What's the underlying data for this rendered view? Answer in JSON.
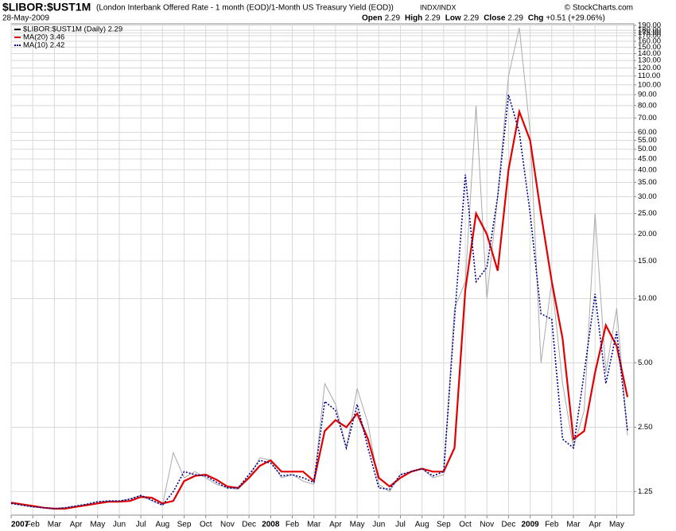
{
  "chart_data": {
    "type": "line",
    "title": "$LIBOR:$UST1M",
    "subtitle": "(London Interbank Offered Rate - 1 month (EOD)/1-Month US Treasury Yield (EOD))",
    "exchange": "INDX/INDX",
    "date": "28-May-2009",
    "credit": "© StockCharts.com",
    "quote": [
      {
        "label": "Open",
        "value": "2.29"
      },
      {
        "label": "High",
        "value": "2.29"
      },
      {
        "label": "Low",
        "value": "2.29"
      },
      {
        "label": "Close",
        "value": "2.29"
      },
      {
        "label": "Chg",
        "value": "+0.51 (+29.06%)"
      }
    ],
    "log_scale": true,
    "grid": true,
    "categories": [
      "2007",
      null,
      "Feb",
      null,
      "Mar",
      null,
      "Apr",
      null,
      "May",
      null,
      "Jun",
      null,
      "Jul",
      null,
      "Aug",
      null,
      "Sep",
      null,
      "Oct",
      null,
      "Nov",
      null,
      "Dec",
      null,
      "2008",
      null,
      "Feb",
      null,
      "Mar",
      null,
      "Apr",
      null,
      "May",
      null,
      "Jun",
      null,
      "Jul",
      null,
      "Aug",
      null,
      "Sep",
      null,
      "Oct",
      null,
      "Nov",
      null,
      "Dec",
      null,
      "2009",
      null,
      "Feb",
      null,
      "Mar",
      null,
      "Apr",
      null,
      "May",
      null
    ],
    "series": [
      {
        "name": "$LIBOR:$UST1M (Daily) 2.29",
        "color": "#aaaaaa",
        "style": "solid",
        "width": 1,
        "values": [
          1.1,
          1.08,
          1.06,
          1.05,
          1.04,
          1.05,
          1.07,
          1.09,
          1.12,
          1.13,
          1.13,
          1.16,
          1.2,
          1.13,
          1.08,
          1.9,
          1.45,
          1.55,
          1.45,
          1.35,
          1.3,
          1.28,
          1.45,
          1.8,
          1.75,
          1.45,
          1.5,
          1.4,
          1.35,
          4.0,
          3.2,
          2.0,
          3.8,
          2.6,
          1.35,
          1.25,
          1.5,
          1.55,
          1.6,
          1.45,
          1.5,
          9.0,
          12.0,
          80.0,
          10.0,
          30.0,
          110.0,
          185.0,
          60.0,
          5.0,
          12.0,
          4.0,
          2.0,
          3.0,
          25.0,
          4.5,
          9.0,
          2.29
        ]
      },
      {
        "name": "MA(20) 3.46",
        "color": "#e00000",
        "style": "solid",
        "width": 2.2,
        "values": [
          1.11,
          1.09,
          1.07,
          1.05,
          1.04,
          1.04,
          1.06,
          1.08,
          1.1,
          1.12,
          1.12,
          1.13,
          1.18,
          1.17,
          1.1,
          1.13,
          1.4,
          1.48,
          1.5,
          1.42,
          1.32,
          1.3,
          1.45,
          1.65,
          1.75,
          1.55,
          1.55,
          1.55,
          1.4,
          2.4,
          2.7,
          2.5,
          2.9,
          2.2,
          1.45,
          1.32,
          1.45,
          1.55,
          1.6,
          1.55,
          1.55,
          2.0,
          11.0,
          25.0,
          20.0,
          13.5,
          40.0,
          75.0,
          55.0,
          25.0,
          12.0,
          6.5,
          2.2,
          2.4,
          4.5,
          7.5,
          6.0,
          3.46
        ]
      },
      {
        "name": "MA(10) 2.42",
        "color": "#00008b",
        "style": "dotted",
        "width": 1.6,
        "values": [
          1.1,
          1.08,
          1.06,
          1.05,
          1.04,
          1.05,
          1.07,
          1.09,
          1.12,
          1.13,
          1.13,
          1.15,
          1.2,
          1.14,
          1.08,
          1.25,
          1.55,
          1.5,
          1.48,
          1.38,
          1.3,
          1.3,
          1.5,
          1.75,
          1.7,
          1.48,
          1.5,
          1.45,
          1.38,
          3.3,
          3.0,
          2.0,
          3.2,
          2.0,
          1.3,
          1.28,
          1.5,
          1.55,
          1.6,
          1.48,
          1.55,
          8.0,
          38.0,
          12.0,
          14.0,
          30.0,
          90.0,
          60.0,
          25.0,
          8.5,
          8.0,
          2.2,
          2.0,
          4.5,
          10.5,
          4.0,
          7.0,
          2.42
        ]
      }
    ],
    "ylim": [
      0.97,
      193
    ],
    "yticks": [
      {
        "value": 1.25,
        "label": "1.25"
      },
      {
        "value": 2.5,
        "label": "2.50"
      },
      {
        "value": 5,
        "label": "5.00"
      },
      {
        "value": 10,
        "label": "10.00"
      },
      {
        "value": 15,
        "label": "15.00"
      },
      {
        "value": 20,
        "label": "20.00"
      },
      {
        "value": 25,
        "label": "25.00"
      },
      {
        "value": 30,
        "label": "30.00"
      },
      {
        "value": 35,
        "label": "35.00"
      },
      {
        "value": 40,
        "label": "40.00"
      },
      {
        "value": 45,
        "label": "45.00"
      },
      {
        "value": 50,
        "label": "50.00"
      },
      {
        "value": 55,
        "label": "55.00"
      },
      {
        "value": 60,
        "label": "60.00"
      },
      {
        "value": 70,
        "label": "70.00"
      },
      {
        "value": 80,
        "label": "80.00"
      },
      {
        "value": 90,
        "label": "90.00"
      },
      {
        "value": 100,
        "label": "100.00"
      },
      {
        "value": 110,
        "label": "110.00"
      },
      {
        "value": 120,
        "label": "120.00"
      },
      {
        "value": 130,
        "label": "130.00"
      },
      {
        "value": 140,
        "label": "140.00"
      },
      {
        "value": 150,
        "label": "150.00"
      },
      {
        "value": 160,
        "label": "160.00"
      },
      {
        "value": 170,
        "label": "170.00"
      },
      {
        "value": 175,
        "label": "175.00"
      },
      {
        "value": 180,
        "label": "180.00"
      },
      {
        "value": 190,
        "label": "190.00"
      }
    ]
  }
}
